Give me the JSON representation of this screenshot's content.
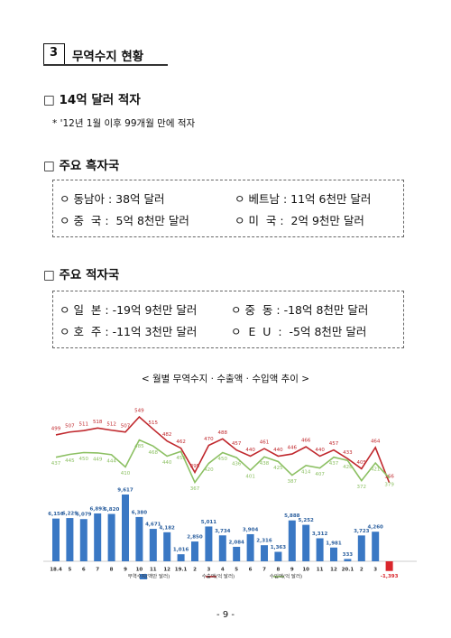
{
  "section": {
    "number": "3",
    "title": "무역수지 현황"
  },
  "headline": "□ 14억 달러 적자",
  "note": "* '12년 1월 이후 99개월 만에 적자",
  "surplus": {
    "heading": "□ 주요 흑자국",
    "items": [
      "ㅇ 동남아 : 38억 달러",
      "ㅇ 베트남 : 11억 6천만 달러",
      "ㅇ 중  국 :  5억 8천만 달러",
      "ㅇ 미  국 :  2억 9천만 달러"
    ]
  },
  "deficit": {
    "heading": "□ 주요 적자국",
    "items": [
      "ㅇ 일  본 : -19억 9천만 달러",
      "ㅇ 중  동 : -18억 8천만 달러",
      "ㅇ 호  주 : -11억 3천만 달러",
      "ㅇ  E  U  :  -5억 8천만 달러"
    ]
  },
  "chart_data": {
    "type": "bar_line",
    "title": "< 월별 무역수지 · 수출액 · 수입액 추이 >",
    "categories": [
      "18.4",
      "5",
      "6",
      "7",
      "8",
      "9",
      "10",
      "11",
      "12",
      "19.1",
      "2",
      "3",
      "4",
      "5",
      "6",
      "7",
      "8",
      "9",
      "10",
      "11",
      "12",
      "20.1",
      "2",
      "3",
      "4"
    ],
    "series": [
      {
        "name": "무역수지(백만 달러)",
        "type": "bar",
        "color": "#3a78c4",
        "negative_color": "#d9262c",
        "values": [
          6156,
          6229,
          6079,
          6893,
          6820,
          9617,
          6380,
          4671,
          4182,
          1016,
          2850,
          5011,
          3734,
          2084,
          3904,
          2316,
          1363,
          5888,
          5252,
          3312,
          1981,
          333,
          3723,
          4260,
          -1393
        ],
        "value_labels": [
          "6,156",
          "6,229",
          "6,079",
          "6,893",
          "6,820",
          "9,617",
          "6,380",
          "4,671",
          "4,182",
          "1,016",
          "2,850",
          "5,011",
          "3,734",
          "2,084",
          "3,904",
          "2,316",
          "1,363",
          "5,888",
          "5,252",
          "3,312",
          "1,981",
          "333",
          "3,723",
          "4,260",
          "-1,393"
        ]
      },
      {
        "name": "수출액(억 달러)",
        "type": "line",
        "color": "#c0282d",
        "values": [
          499,
          507,
          511,
          518,
          512,
          507,
          549,
          515,
          482,
          462,
          395,
          470,
          488,
          457,
          440,
          461,
          440,
          446,
          466,
          440,
          457,
          433,
          405,
          464,
          366
        ]
      },
      {
        "name": "수입액(억 달러)",
        "type": "line",
        "color": "#8cc063",
        "values": [
          437,
          445,
          450,
          449,
          444,
          410,
          485,
          468,
          440,
          453,
          367,
          420,
          450,
          436,
          401,
          438,
          425,
          387,
          414,
          407,
          437,
          428,
          372,
          421,
          379
        ]
      }
    ]
  },
  "page_number": "- 9 -"
}
